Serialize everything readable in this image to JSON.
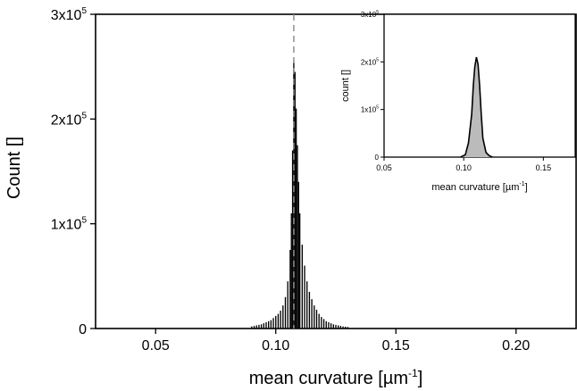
{
  "chart_data": [
    {
      "type": "bar",
      "xlabel_main": "mean curvature [",
      "xlabel_unit": "µm",
      "xlabel_exp": "-1",
      "xlabel_close": "]",
      "ylabel": "Count []",
      "xlim": [
        0.025,
        0.225
      ],
      "ylim": [
        0,
        300000
      ],
      "x_ticks": [
        0.05,
        0.1,
        0.15,
        0.2
      ],
      "x_tick_labels": [
        "0.05",
        "0.10",
        "0.15",
        "0.20"
      ],
      "y_ticks": [
        0,
        100000,
        200000,
        300000
      ],
      "y_tick_labels": [
        {
          "base": "0",
          "exp": ""
        },
        {
          "base": "1x10",
          "exp": "5"
        },
        {
          "base": "2x10",
          "exp": "5"
        },
        {
          "base": "3x10",
          "exp": "5"
        }
      ],
      "reference_line_x": 0.1075,
      "bin_width": 0.0005,
      "bins": [
        {
          "x": 0.09,
          "y": 2000
        },
        {
          "x": 0.091,
          "y": 2500
        },
        {
          "x": 0.092,
          "y": 3000
        },
        {
          "x": 0.093,
          "y": 3500
        },
        {
          "x": 0.094,
          "y": 4000
        },
        {
          "x": 0.095,
          "y": 5000
        },
        {
          "x": 0.096,
          "y": 6000
        },
        {
          "x": 0.097,
          "y": 7000
        },
        {
          "x": 0.098,
          "y": 8000
        },
        {
          "x": 0.099,
          "y": 10000
        },
        {
          "x": 0.1,
          "y": 12000
        },
        {
          "x": 0.101,
          "y": 14000
        },
        {
          "x": 0.102,
          "y": 17000
        },
        {
          "x": 0.103,
          "y": 22000
        },
        {
          "x": 0.104,
          "y": 30000
        },
        {
          "x": 0.105,
          "y": 45000
        },
        {
          "x": 0.106,
          "y": 75000
        },
        {
          "x": 0.1065,
          "y": 110000
        },
        {
          "x": 0.107,
          "y": 170000
        },
        {
          "x": 0.1075,
          "y": 255000
        },
        {
          "x": 0.108,
          "y": 245000
        },
        {
          "x": 0.1085,
          "y": 210000
        },
        {
          "x": 0.109,
          "y": 175000
        },
        {
          "x": 0.1095,
          "y": 140000
        },
        {
          "x": 0.11,
          "y": 110000
        },
        {
          "x": 0.111,
          "y": 80000
        },
        {
          "x": 0.112,
          "y": 60000
        },
        {
          "x": 0.113,
          "y": 45000
        },
        {
          "x": 0.114,
          "y": 35000
        },
        {
          "x": 0.115,
          "y": 28000
        },
        {
          "x": 0.116,
          "y": 22000
        },
        {
          "x": 0.117,
          "y": 18000
        },
        {
          "x": 0.118,
          "y": 14000
        },
        {
          "x": 0.119,
          "y": 11000
        },
        {
          "x": 0.12,
          "y": 9000
        },
        {
          "x": 0.121,
          "y": 7000
        },
        {
          "x": 0.122,
          "y": 6000
        },
        {
          "x": 0.123,
          "y": 5000
        },
        {
          "x": 0.124,
          "y": 4000
        },
        {
          "x": 0.125,
          "y": 3500
        },
        {
          "x": 0.126,
          "y": 3000
        },
        {
          "x": 0.127,
          "y": 2500
        },
        {
          "x": 0.128,
          "y": 2000
        },
        {
          "x": 0.129,
          "y": 1800
        },
        {
          "x": 0.13,
          "y": 1500
        }
      ],
      "colors": {
        "bars": "#000000",
        "reference_line": "#888888"
      }
    },
    {
      "type": "line",
      "xlabel_main": "mean curvature [",
      "xlabel_unit": "µm",
      "xlabel_exp": "-1",
      "xlabel_close": "]",
      "ylabel": "count []",
      "xlim": [
        0.05,
        0.17
      ],
      "ylim": [
        0,
        300000
      ],
      "x_ticks": [
        0.05,
        0.1,
        0.15
      ],
      "x_tick_labels": [
        "0.05",
        "0.10",
        "0.15"
      ],
      "y_ticks": [
        0,
        100000,
        200000,
        300000
      ],
      "y_tick_labels": [
        {
          "base": "0",
          "exp": ""
        },
        {
          "base": "1x10",
          "exp": "5"
        },
        {
          "base": "2x10",
          "exp": "5"
        },
        {
          "base": "3x10",
          "exp": "5"
        }
      ],
      "series": [
        {
          "x": [
            0.098,
            0.101,
            0.103,
            0.105,
            0.106,
            0.107,
            0.108,
            0.109,
            0.11,
            0.111,
            0.112,
            0.114,
            0.116,
            0.118
          ],
          "y": [
            0,
            5000,
            30000,
            90000,
            150000,
            190000,
            210000,
            195000,
            150000,
            90000,
            40000,
            10000,
            3000,
            0
          ],
          "color": "#000000"
        }
      ],
      "fill_color": "#bbbbbb"
    }
  ]
}
